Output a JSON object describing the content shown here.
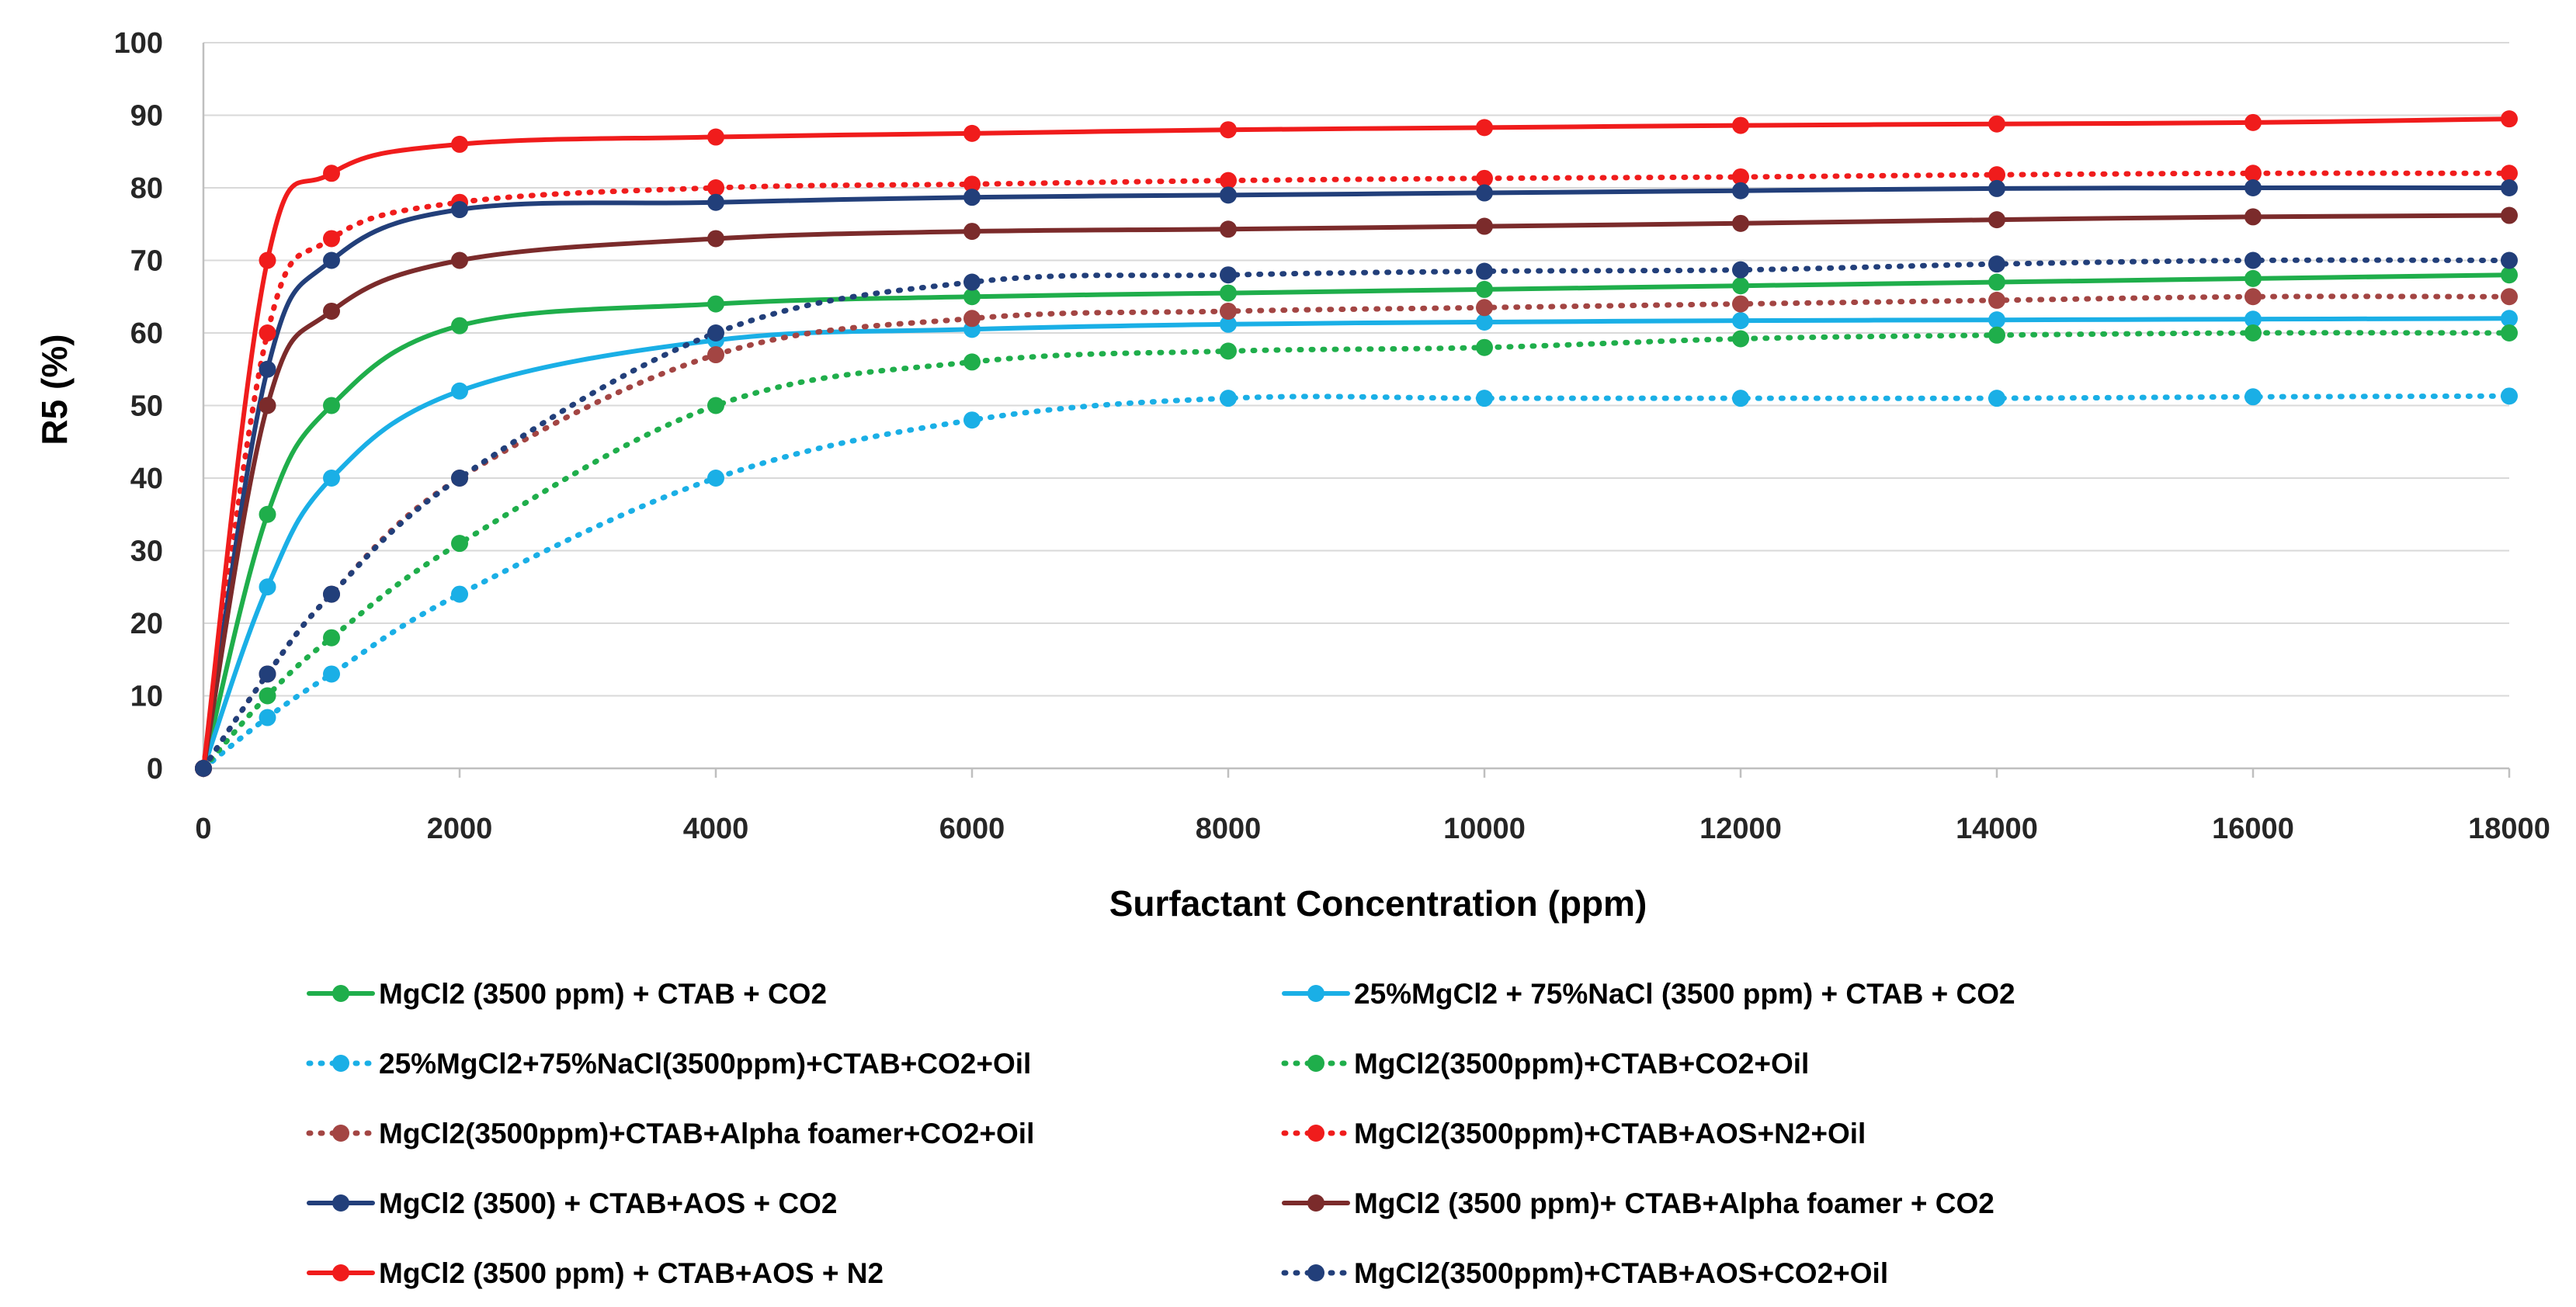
{
  "chart_data": {
    "type": "line",
    "title": "",
    "xlabel": "Surfactant Concentration (ppm)",
    "ylabel": "R5 (%)",
    "xlim": [
      0,
      18000
    ],
    "ylim": [
      0,
      100
    ],
    "x_ticks": [
      0,
      2000,
      4000,
      6000,
      8000,
      10000,
      12000,
      14000,
      16000,
      18000
    ],
    "y_ticks": [
      0,
      10,
      20,
      30,
      40,
      50,
      60,
      70,
      80,
      90,
      100
    ],
    "grid": "horizontal",
    "legend_position": "bottom",
    "x": [
      0,
      500,
      1000,
      2000,
      4000,
      6000,
      8000,
      10000,
      12000,
      14000,
      16000,
      18000
    ],
    "series": [
      {
        "name": "MgCl2 (3500 ppm) + CTAB + CO2",
        "color": "#1fae4b",
        "dashed": false,
        "values": [
          0,
          35,
          50,
          61,
          64,
          65,
          65.5,
          66,
          66.5,
          67,
          67.5,
          68
        ]
      },
      {
        "name": "25%MgCl2 + 75%NaCl (3500 ppm) + CTAB + CO2",
        "color": "#1aafe6",
        "dashed": false,
        "values": [
          0,
          25,
          40,
          52,
          59,
          60.5,
          61.2,
          61.5,
          61.7,
          61.8,
          61.9,
          62
        ]
      },
      {
        "name": "25%MgCl2+75%NaCl(3500ppm)+CTAB+CO2+Oil",
        "color": "#1aafe6",
        "dashed": true,
        "values": [
          0,
          7,
          13,
          24,
          40,
          48,
          51,
          51,
          51,
          51,
          51.2,
          51.3
        ]
      },
      {
        "name": "MgCl2(3500ppm)+CTAB+CO2+Oil",
        "color": "#1fae4b",
        "dashed": true,
        "values": [
          0,
          10,
          18,
          31,
          50,
          56,
          57.5,
          58,
          59.2,
          59.7,
          60,
          60
        ]
      },
      {
        "name": "MgCl2(3500ppm)+CTAB+Alpha foamer+CO2+Oil",
        "color": "#a34543",
        "dashed": true,
        "values": [
          0,
          13,
          24,
          40,
          57,
          62,
          63,
          63.5,
          64,
          64.5,
          65,
          65
        ]
      },
      {
        "name": "MgCl2(3500ppm)+CTAB+AOS+N2+Oil",
        "color": "#f01c1c",
        "dashed": true,
        "values": [
          0,
          60,
          73,
          78,
          80,
          80.5,
          81,
          81.3,
          81.5,
          81.8,
          82,
          82
        ]
      },
      {
        "name": "MgCl2 (3500) + CTAB+AOS + CO2",
        "color": "#223f7a",
        "dashed": false,
        "values": [
          0,
          55,
          70,
          77,
          78,
          78.7,
          79,
          79.3,
          79.6,
          79.9,
          80,
          80
        ]
      },
      {
        "name": "MgCl2 (3500 ppm)+ CTAB+Alpha foamer + CO2",
        "color": "#7b2b2b",
        "dashed": false,
        "values": [
          0,
          50,
          63,
          70,
          73,
          74,
          74.3,
          74.7,
          75.1,
          75.6,
          76,
          76.2
        ]
      },
      {
        "name": "MgCl2 (3500 ppm) + CTAB+AOS + N2",
        "color": "#f01c1c",
        "dashed": false,
        "values": [
          0,
          70,
          82,
          86,
          87,
          87.5,
          88,
          88.3,
          88.6,
          88.8,
          89,
          89.5
        ]
      },
      {
        "name": "MgCl2(3500ppm)+CTAB+AOS+CO2+Oil",
        "color": "#223f7a",
        "dashed": true,
        "values": [
          0,
          13,
          24,
          40,
          60,
          67,
          68,
          68.5,
          68.7,
          69.5,
          70,
          70
        ]
      }
    ]
  }
}
